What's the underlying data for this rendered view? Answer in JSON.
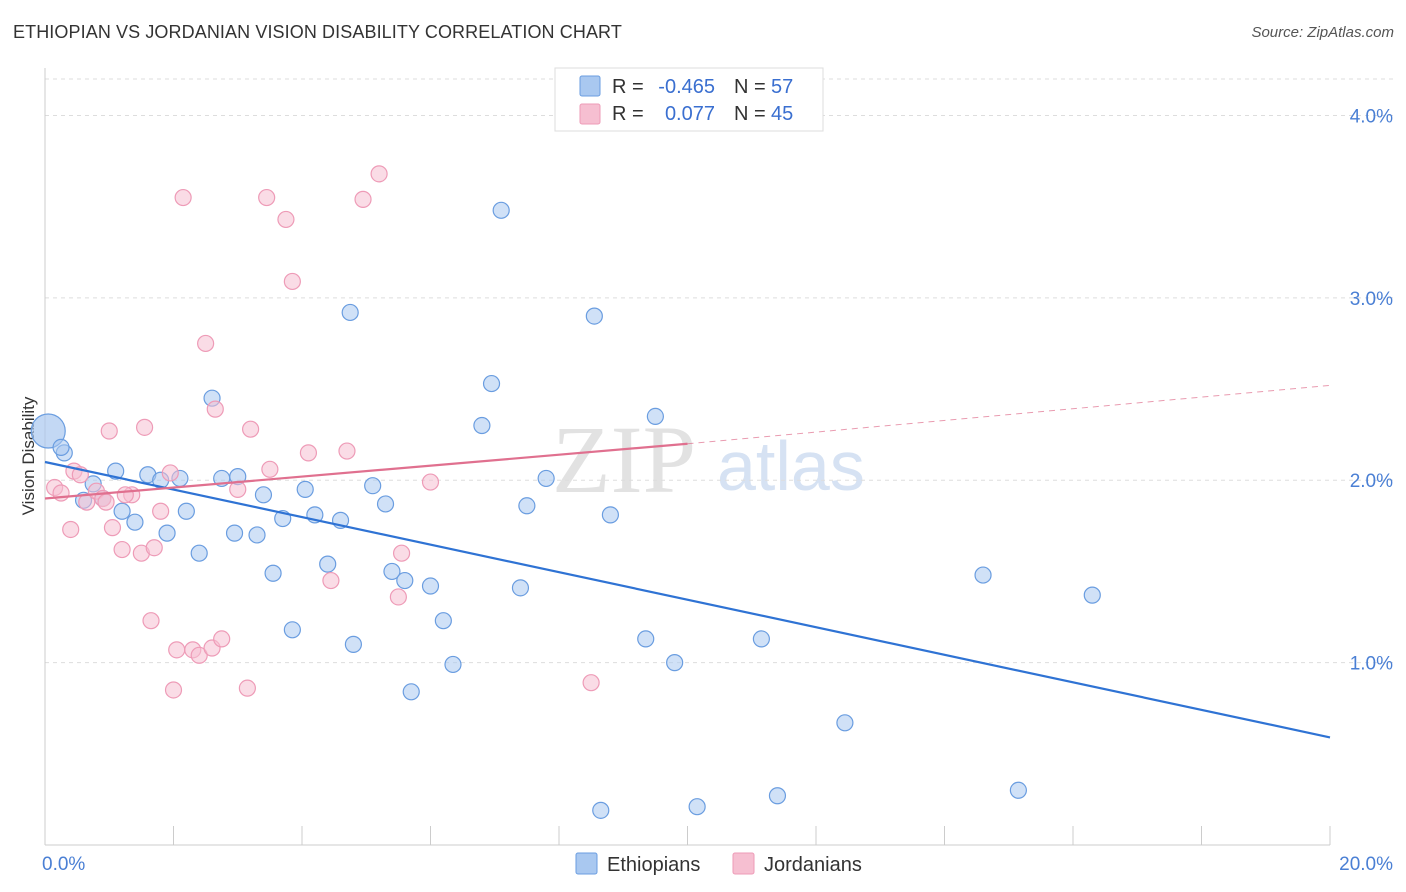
{
  "header": {
    "title": "ETHIOPIAN VS JORDANIAN VISION DISABILITY CORRELATION CHART",
    "source": "Source: ZipAtlas.com"
  },
  "watermark": {
    "zip": "ZIP",
    "atlas": "atlas"
  },
  "stats": [
    {
      "r_label": "R =",
      "r_value": "-0.465",
      "n_label": "N =",
      "n_value": "57",
      "color": "#a9c8f0"
    },
    {
      "r_label": "R =",
      "r_value": "0.077",
      "n_label": "N =",
      "n_value": "45",
      "color": "#f6bfd1"
    }
  ],
  "chart_data": {
    "type": "scatter",
    "title": "ETHIOPIAN VS JORDANIAN VISION DISABILITY CORRELATION CHART",
    "xlabel": "",
    "ylabel": "Vision Disability",
    "xlim": [
      0,
      20
    ],
    "ylim": [
      0,
      4.2
    ],
    "x_tick_labels": [
      "0.0%",
      "20.0%"
    ],
    "y_ticks": [
      1,
      2,
      3,
      4
    ],
    "y_tick_labels": [
      "1.0%",
      "2.0%",
      "3.0%",
      "4.0%"
    ],
    "grid": true,
    "legend_position": "bottom-center",
    "series": [
      {
        "name": "Ethiopians",
        "color": "#a9c8f0",
        "stroke": "#6a9de0",
        "line_color": "#2f73d4",
        "trend": {
          "x": [
            0.0,
            20.0
          ],
          "y": [
            2.1,
            0.59
          ]
        },
        "points": [
          [
            0.05,
            2.27
          ],
          [
            0.3,
            2.15
          ],
          [
            0.6,
            1.89
          ],
          [
            0.75,
            1.98
          ],
          [
            0.9,
            1.9
          ],
          [
            1.1,
            2.05
          ],
          [
            1.2,
            1.83
          ],
          [
            1.4,
            1.77
          ],
          [
            1.6,
            2.03
          ],
          [
            1.8,
            2.0
          ],
          [
            1.9,
            1.71
          ],
          [
            2.1,
            2.01
          ],
          [
            2.2,
            1.83
          ],
          [
            2.4,
            1.6
          ],
          [
            2.6,
            2.45
          ],
          [
            2.75,
            2.01
          ],
          [
            3.0,
            2.02
          ],
          [
            2.95,
            1.71
          ],
          [
            3.3,
            1.7
          ],
          [
            3.4,
            1.92
          ],
          [
            3.55,
            1.49
          ],
          [
            3.7,
            1.79
          ],
          [
            3.85,
            1.18
          ],
          [
            4.05,
            1.95
          ],
          [
            4.2,
            1.81
          ],
          [
            4.4,
            1.54
          ],
          [
            4.6,
            1.78
          ],
          [
            4.75,
            2.92
          ],
          [
            4.8,
            1.1
          ],
          [
            5.1,
            1.97
          ],
          [
            5.3,
            1.87
          ],
          [
            5.4,
            1.5
          ],
          [
            5.6,
            1.45
          ],
          [
            5.7,
            0.84
          ],
          [
            6.0,
            1.42
          ],
          [
            6.2,
            1.23
          ],
          [
            6.35,
            0.99
          ],
          [
            6.8,
            2.3
          ],
          [
            6.95,
            2.53
          ],
          [
            7.1,
            3.48
          ],
          [
            7.4,
            1.41
          ],
          [
            7.5,
            1.86
          ],
          [
            7.8,
            2.01
          ],
          [
            8.55,
            2.9
          ],
          [
            8.65,
            0.19
          ],
          [
            8.8,
            1.81
          ],
          [
            9.35,
            1.13
          ],
          [
            9.5,
            2.35
          ],
          [
            9.8,
            1.0
          ],
          [
            10.15,
            0.21
          ],
          [
            11.15,
            1.13
          ],
          [
            11.4,
            0.27
          ],
          [
            12.45,
            0.67
          ],
          [
            14.6,
            1.48
          ],
          [
            15.15,
            0.3
          ],
          [
            16.3,
            1.37
          ],
          [
            0.25,
            2.18
          ]
        ]
      },
      {
        "name": "Jordanians",
        "color": "#f6bfd1",
        "stroke": "#ee9bb7",
        "line_color": "#e0708f",
        "trend": {
          "x": [
            0.0,
            10.0
          ],
          "y": [
            1.9,
            2.2
          ]
        },
        "dashed_extension": {
          "x": [
            10.0,
            20.0
          ],
          "y": [
            2.2,
            2.52
          ]
        },
        "points": [
          [
            0.15,
            1.96
          ],
          [
            0.25,
            1.93
          ],
          [
            0.4,
            1.73
          ],
          [
            0.45,
            2.05
          ],
          [
            0.55,
            2.03
          ],
          [
            0.65,
            1.88
          ],
          [
            0.8,
            1.94
          ],
          [
            0.9,
            1.9
          ],
          [
            0.95,
            1.88
          ],
          [
            1.0,
            2.27
          ],
          [
            1.05,
            1.74
          ],
          [
            1.2,
            1.62
          ],
          [
            1.35,
            1.92
          ],
          [
            1.5,
            1.6
          ],
          [
            1.55,
            2.29
          ],
          [
            1.65,
            1.23
          ],
          [
            1.7,
            1.63
          ],
          [
            1.8,
            1.83
          ],
          [
            1.95,
            2.04
          ],
          [
            2.0,
            0.85
          ],
          [
            2.05,
            1.07
          ],
          [
            2.15,
            3.55
          ],
          [
            2.3,
            1.07
          ],
          [
            2.4,
            1.04
          ],
          [
            2.5,
            2.75
          ],
          [
            2.6,
            1.08
          ],
          [
            2.65,
            2.39
          ],
          [
            2.75,
            1.13
          ],
          [
            3.15,
            0.86
          ],
          [
            3.2,
            2.28
          ],
          [
            3.45,
            3.55
          ],
          [
            3.5,
            2.06
          ],
          [
            3.75,
            3.43
          ],
          [
            3.85,
            3.09
          ],
          [
            4.1,
            2.15
          ],
          [
            4.45,
            1.45
          ],
          [
            4.7,
            2.16
          ],
          [
            4.95,
            3.54
          ],
          [
            5.2,
            3.68
          ],
          [
            5.5,
            1.36
          ],
          [
            5.55,
            1.6
          ],
          [
            6.0,
            1.99
          ],
          [
            8.5,
            0.89
          ],
          [
            3.0,
            1.95
          ],
          [
            1.25,
            1.92
          ]
        ]
      }
    ]
  }
}
